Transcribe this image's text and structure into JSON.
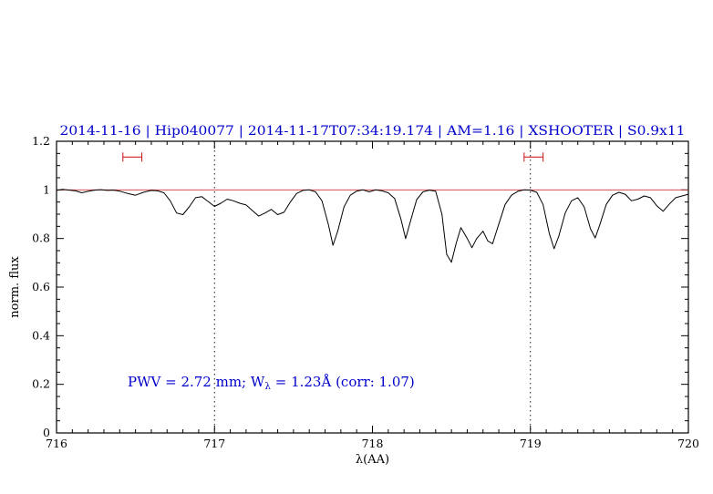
{
  "colors": {
    "accent_blue": "#0000cc",
    "spectrum_black": "#000000",
    "reference_red": "#cc3333",
    "marker_red": "#cc2222",
    "axis_black": "#000000"
  },
  "annotation": {
    "part1": "PWV = 2.72 mm; W",
    "sub": "λ",
    "part2": " = 1.23Å (corr: 1.07)"
  },
  "chart_data": {
    "type": "line",
    "title": "2014-11-16 | Hip040077 | 2014-11-17T07:34:19.174 | AM=1.16 | XSHOOTER | S0.9x11",
    "xlabel": "λ(AA)",
    "ylabel": "norm. flux",
    "xlim": [
      716,
      720
    ],
    "ylim": [
      0,
      1.2
    ],
    "xticks": [
      716,
      717,
      718,
      719,
      720
    ],
    "xtick_labels": [
      "716",
      "717",
      "718",
      "719",
      "720"
    ],
    "yticks": [
      0,
      0.2,
      0.4,
      0.6,
      0.8,
      1,
      1.2
    ],
    "ytick_labels": [
      "0",
      "0.2",
      "0.4",
      "0.6",
      "0.8",
      "1",
      "1.2"
    ],
    "x_minor_step": 0.1,
    "y_minor_step": 0.05,
    "grid": false,
    "legend": "none",
    "vlines_dotted": [
      717,
      719
    ],
    "hline_reference": {
      "y": 1.0
    },
    "range_markers": [
      {
        "x1": 716.42,
        "x2": 716.54,
        "y": 1.135
      },
      {
        "x1": 718.96,
        "x2": 719.08,
        "y": 1.135
      }
    ],
    "series": [
      {
        "name": "telluric-spectrum",
        "points": [
          [
            716.0,
            0.998
          ],
          [
            716.04,
            1.002
          ],
          [
            716.08,
            0.999
          ],
          [
            716.12,
            0.996
          ],
          [
            716.16,
            0.988
          ],
          [
            716.2,
            0.994
          ],
          [
            716.24,
            0.999
          ],
          [
            716.28,
            1.001
          ],
          [
            716.32,
            0.998
          ],
          [
            716.36,
            0.999
          ],
          [
            716.4,
            0.995
          ],
          [
            716.45,
            0.985
          ],
          [
            716.5,
            0.978
          ],
          [
            716.55,
            0.99
          ],
          [
            716.6,
            0.998
          ],
          [
            716.64,
            0.996
          ],
          [
            716.68,
            0.988
          ],
          [
            716.72,
            0.955
          ],
          [
            716.76,
            0.905
          ],
          [
            716.8,
            0.898
          ],
          [
            716.84,
            0.93
          ],
          [
            716.88,
            0.968
          ],
          [
            716.92,
            0.972
          ],
          [
            716.96,
            0.952
          ],
          [
            717.0,
            0.932
          ],
          [
            717.04,
            0.945
          ],
          [
            717.08,
            0.962
          ],
          [
            717.12,
            0.955
          ],
          [
            717.16,
            0.945
          ],
          [
            717.2,
            0.938
          ],
          [
            717.24,
            0.915
          ],
          [
            717.28,
            0.892
          ],
          [
            717.32,
            0.905
          ],
          [
            717.36,
            0.92
          ],
          [
            717.4,
            0.898
          ],
          [
            717.44,
            0.908
          ],
          [
            717.48,
            0.95
          ],
          [
            717.52,
            0.985
          ],
          [
            717.56,
            0.998
          ],
          [
            717.6,
            1.0
          ],
          [
            717.64,
            0.992
          ],
          [
            717.68,
            0.955
          ],
          [
            717.72,
            0.86
          ],
          [
            717.75,
            0.772
          ],
          [
            717.78,
            0.83
          ],
          [
            717.82,
            0.93
          ],
          [
            717.86,
            0.978
          ],
          [
            717.9,
            0.995
          ],
          [
            717.94,
            1.0
          ],
          [
            717.98,
            0.992
          ],
          [
            718.02,
            1.0
          ],
          [
            718.06,
            0.996
          ],
          [
            718.1,
            0.988
          ],
          [
            718.14,
            0.965
          ],
          [
            718.18,
            0.88
          ],
          [
            718.21,
            0.8
          ],
          [
            718.24,
            0.87
          ],
          [
            718.28,
            0.96
          ],
          [
            718.32,
            0.992
          ],
          [
            718.36,
            0.999
          ],
          [
            718.4,
            0.995
          ],
          [
            718.44,
            0.9
          ],
          [
            718.47,
            0.735
          ],
          [
            718.5,
            0.702
          ],
          [
            718.53,
            0.78
          ],
          [
            718.56,
            0.845
          ],
          [
            718.6,
            0.8
          ],
          [
            718.63,
            0.762
          ],
          [
            718.66,
            0.8
          ],
          [
            718.7,
            0.83
          ],
          [
            718.73,
            0.79
          ],
          [
            718.76,
            0.778
          ],
          [
            718.8,
            0.86
          ],
          [
            718.84,
            0.94
          ],
          [
            718.88,
            0.978
          ],
          [
            718.92,
            0.994
          ],
          [
            718.96,
            1.0
          ],
          [
            719.0,
            0.999
          ],
          [
            719.04,
            0.99
          ],
          [
            719.08,
            0.94
          ],
          [
            719.12,
            0.82
          ],
          [
            719.15,
            0.758
          ],
          [
            719.18,
            0.81
          ],
          [
            719.22,
            0.905
          ],
          [
            719.26,
            0.955
          ],
          [
            719.3,
            0.968
          ],
          [
            719.34,
            0.93
          ],
          [
            719.38,
            0.84
          ],
          [
            719.41,
            0.802
          ],
          [
            719.44,
            0.858
          ],
          [
            719.48,
            0.94
          ],
          [
            719.52,
            0.978
          ],
          [
            719.56,
            0.99
          ],
          [
            719.6,
            0.982
          ],
          [
            719.64,
            0.955
          ],
          [
            719.68,
            0.962
          ],
          [
            719.72,
            0.975
          ],
          [
            719.76,
            0.968
          ],
          [
            719.8,
            0.935
          ],
          [
            719.84,
            0.912
          ],
          [
            719.88,
            0.942
          ],
          [
            719.92,
            0.968
          ],
          [
            719.96,
            0.975
          ],
          [
            720.0,
            0.982
          ]
        ]
      }
    ]
  }
}
